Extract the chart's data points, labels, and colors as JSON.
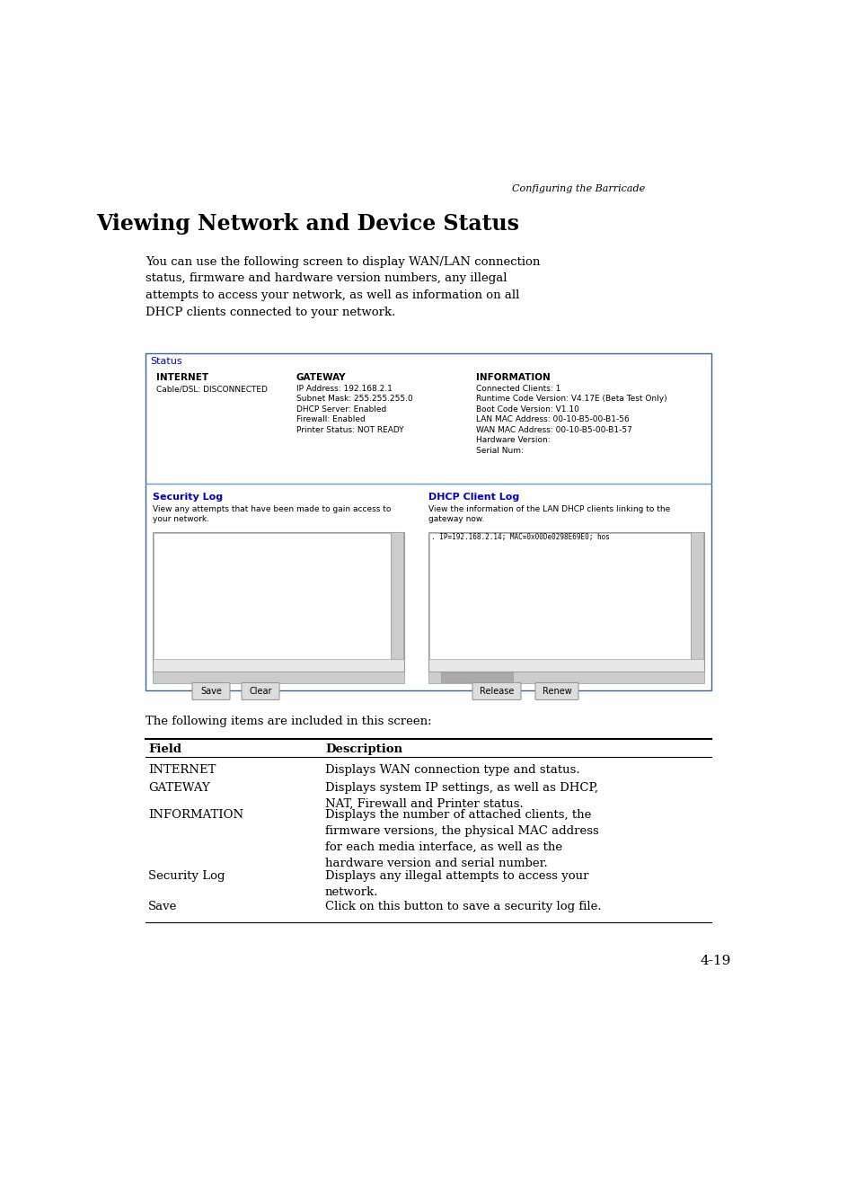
{
  "page_bg": "#ffffff",
  "header_text": "Configuring the Barricade",
  "title": "Viewing Network and Device Status",
  "intro_text": "You can use the following screen to display WAN/LAN connection\nstatus, firmware and hardware version numbers, any illegal\nattempts to access your network, as well as information on all\nDHCP clients connected to your network.",
  "status_label": "Status",
  "internet_header": "INTERNET",
  "internet_content": "Cable/DSL: DISCONNECTED",
  "gateway_header": "GATEWAY",
  "gateway_content": "IP Address: 192.168.2.1\nSubnet Mask: 255.255.255.0\nDHCP Server: Enabled\nFirewall: Enabled\nPrinter Status: NOT READY",
  "information_header": "INFORMATION",
  "information_content": "Connected Clients: 1\nRuntime Code Version: V4.17E (Beta Test Only)\nBoot Code Version: V1.10\nLAN MAC Address: 00-10-B5-00-B1-56\nWAN MAC Address: 00-10-B5-00-B1-57\nHardware Version:\nSerial Num:",
  "security_log_header": "Security Log",
  "security_log_desc": "View any attempts that have been made to gain access to\nyour network.",
  "dhcp_log_header": "DHCP Client Log",
  "dhcp_log_desc": "View the information of the LAN DHCP clients linking to the\ngateway now.",
  "dhcp_log_content": ". IP=192.168.2.14; MAC=0x00De0298E69E0; hos",
  "following_text": "The following items are included in this screen:",
  "table_rows": [
    [
      "Field",
      "Description"
    ],
    [
      "INTERNET",
      "Displays WAN connection type and status."
    ],
    [
      "GATEWAY",
      "Displays system IP settings, as well as DHCP,\nNAT, Firewall and Printer status."
    ],
    [
      "INFORMATION",
      "Displays the number of attached clients, the\nfirmware versions, the physical MAC address\nfor each media interface, as well as the\nhardware version and serial number."
    ],
    [
      "Security Log",
      "Displays any illegal attempts to access your\nnetwork."
    ],
    [
      "Save",
      "Click on this button to save a security log file."
    ]
  ],
  "page_number": "4-19",
  "blue_color": "#0000cc",
  "border_color": "#336699",
  "text_color": "#000000",
  "gray_color": "#aaaaaa",
  "light_blue_line": "#6699cc"
}
